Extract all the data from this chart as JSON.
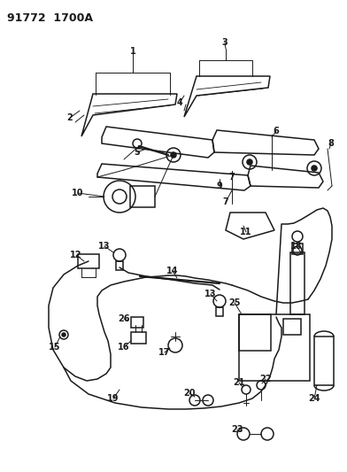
{
  "title": "91772 1700A",
  "bg_color": "#ffffff",
  "line_color": "#1a1a1a",
  "title_fontsize": 9,
  "label_fontsize": 7,
  "fig_width": 3.92,
  "fig_height": 5.33,
  "dpi": 100
}
